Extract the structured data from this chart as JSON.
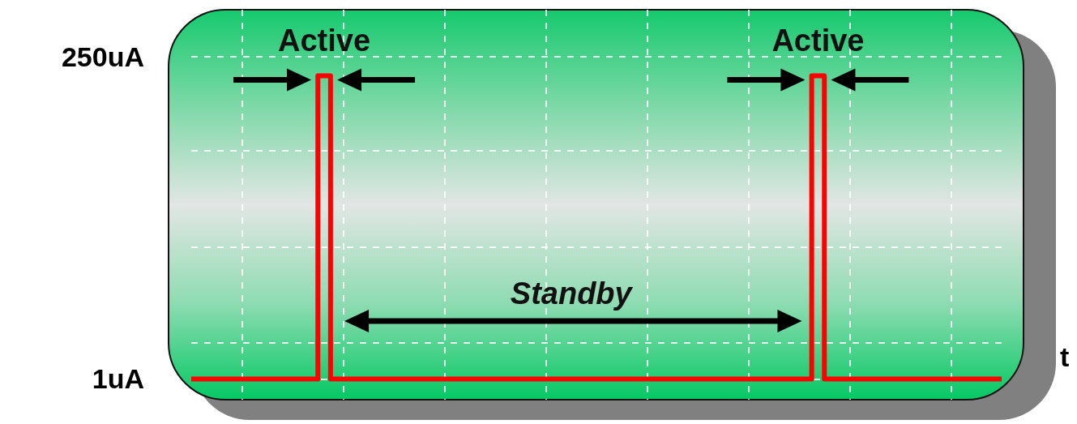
{
  "chart_data": {
    "type": "step",
    "xlabel": "t",
    "categories": [
      null,
      null,
      null,
      null,
      null,
      null,
      null,
      null,
      null,
      null,
      null,
      null,
      null,
      null,
      null,
      null,
      null,
      null,
      null,
      null,
      null,
      null,
      null,
      null,
      null,
      null,
      null,
      null,
      null,
      null,
      null,
      null,
      null,
      null,
      null,
      null,
      null,
      null,
      null,
      null,
      null,
      null,
      null,
      null,
      null,
      null,
      null,
      null,
      null,
      null,
      null,
      null,
      null,
      null,
      null,
      null,
      null,
      null,
      null,
      null,
      null,
      null,
      null,
      null,
      null
    ],
    "series": [
      {
        "color": "#ff0000",
        "values": [
          1,
          1,
          1,
          1,
          1,
          1,
          1,
          1,
          1,
          1,
          235,
          1,
          1,
          1,
          1,
          1,
          1,
          1,
          1,
          1,
          1,
          1,
          1,
          1,
          1,
          1,
          1,
          1,
          1,
          1,
          1,
          1,
          1,
          1,
          1,
          1,
          1,
          1,
          1,
          1,
          1,
          1,
          1,
          1,
          1,
          1,
          1,
          1,
          1,
          235,
          1,
          1,
          1,
          1,
          1,
          1,
          1,
          1,
          1,
          1,
          1,
          1,
          1,
          1,
          1
        ]
      }
    ],
    "ylim": [
      -15,
      286
    ],
    "yticks": [
      {
        "value": 1,
        "label": "1uA"
      },
      {
        "value": 29,
        "label": null
      },
      {
        "value": 103,
        "label": null
      },
      {
        "value": 177,
        "label": null
      },
      {
        "value": 250,
        "label": "250uA"
      }
    ],
    "tick_labels": "y",
    "grid": true,
    "marker": "none",
    "line_style": "solid",
    "annotations": [
      "Active",
      "Active",
      "Standby"
    ]
  }
}
